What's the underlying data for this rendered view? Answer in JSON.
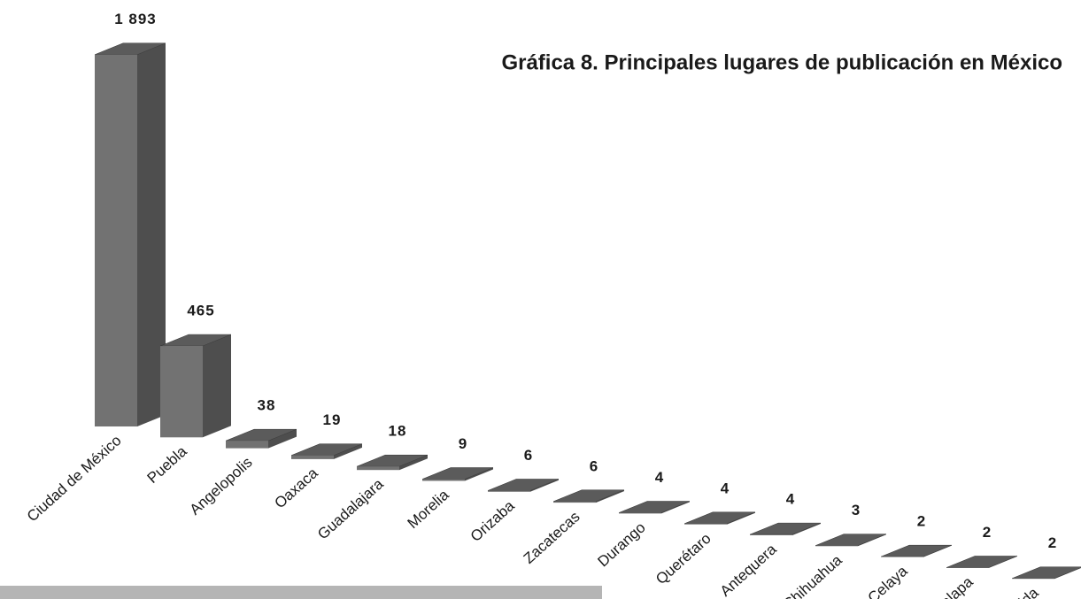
{
  "chart_data": {
    "type": "bar3d",
    "title": "Gráfica 8. Principales lugares de publicación en México",
    "categories": [
      "Ciudad de México",
      "Puebla",
      "Angelopolis",
      "Oaxaca",
      "Guadalajara",
      "Morelia",
      "Orizaba",
      "Zacatecas",
      "Durango",
      "Querétaro",
      "Antequera",
      "Chihuahua",
      "Celaya",
      "Jalapa",
      "Mérida"
    ],
    "values": [
      1893,
      465,
      38,
      19,
      18,
      9,
      6,
      6,
      4,
      4,
      4,
      3,
      2,
      2,
      2
    ],
    "value_labels": [
      "1 893",
      "465",
      "38",
      "19",
      "18",
      "9",
      "6",
      "6",
      "4",
      "4",
      "4",
      "3",
      "2",
      "2",
      "2"
    ],
    "color": "#727272"
  }
}
